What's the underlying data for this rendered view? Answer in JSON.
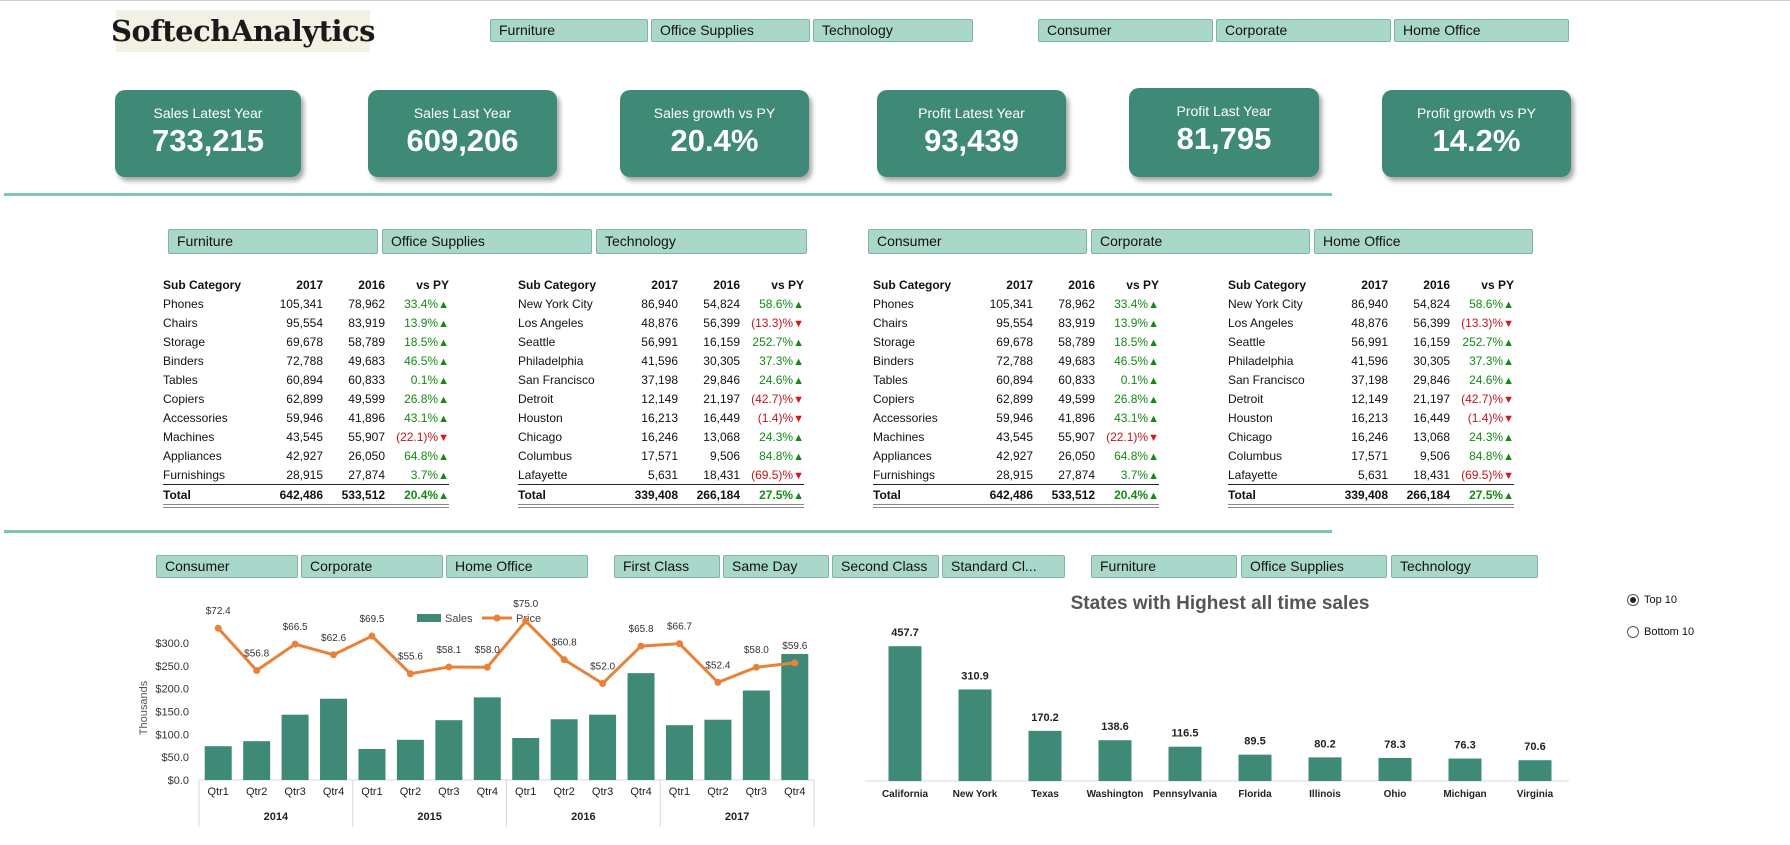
{
  "logo_text": "SoftechAnalytics",
  "top_slicers": {
    "category": [
      "Furniture",
      "Office Supplies",
      "Technology"
    ],
    "segment": [
      "Consumer",
      "Corporate",
      "Home Office"
    ]
  },
  "kpis": [
    {
      "title": "Sales Latest Year",
      "value": "733,215"
    },
    {
      "title": "Sales Last Year",
      "value": "609,206"
    },
    {
      "title": "Sales growth vs PY",
      "value": "20.4%"
    },
    {
      "title": "Profit Latest Year",
      "value": "93,439"
    },
    {
      "title": "Profit Last Year",
      "value": "81,795"
    },
    {
      "title": "Profit growth vs PY",
      "value": "14.2%"
    }
  ],
  "mid_slicers": {
    "category": [
      "Furniture",
      "Office Supplies",
      "Technology"
    ],
    "segment": [
      "Consumer",
      "Corporate",
      "Home Office"
    ]
  },
  "tables": [
    {
      "headers": [
        "Sub Category",
        "2017",
        "2016",
        "vs PY"
      ],
      "rows": [
        [
          "Phones",
          "105,341",
          "78,962",
          "33.4%",
          "up"
        ],
        [
          "Chairs",
          "95,554",
          "83,919",
          "13.9%",
          "up"
        ],
        [
          "Storage",
          "69,678",
          "58,789",
          "18.5%",
          "up"
        ],
        [
          "Binders",
          "72,788",
          "49,683",
          "46.5%",
          "up"
        ],
        [
          "Tables",
          "60,894",
          "60,833",
          "0.1%",
          "up"
        ],
        [
          "Copiers",
          "62,899",
          "49,599",
          "26.8%",
          "up"
        ],
        [
          "Accessories",
          "59,946",
          "41,896",
          "43.1%",
          "up"
        ],
        [
          "Machines",
          "43,545",
          "55,907",
          "(22.1)%",
          "down"
        ],
        [
          "Appliances",
          "42,927",
          "26,050",
          "64.8%",
          "up"
        ],
        [
          "Furnishings",
          "28,915",
          "27,874",
          "3.7%",
          "up"
        ]
      ],
      "total": [
        "Total",
        "642,486",
        "533,512",
        "20.4%",
        "up"
      ]
    },
    {
      "headers": [
        "Sub Category",
        "2017",
        "2016",
        "vs PY"
      ],
      "rows": [
        [
          "New York City",
          "86,940",
          "54,824",
          "58.6%",
          "up"
        ],
        [
          "Los Angeles",
          "48,876",
          "56,399",
          "(13.3)%",
          "down"
        ],
        [
          "Seattle",
          "56,991",
          "16,159",
          "252.7%",
          "up"
        ],
        [
          "Philadelphia",
          "41,596",
          "30,305",
          "37.3%",
          "up"
        ],
        [
          "San Francisco",
          "37,198",
          "29,846",
          "24.6%",
          "up"
        ],
        [
          "Detroit",
          "12,149",
          "21,197",
          "(42.7)%",
          "down"
        ],
        [
          "Houston",
          "16,213",
          "16,449",
          "(1.4)%",
          "down"
        ],
        [
          "Chicago",
          "16,246",
          "13,068",
          "24.3%",
          "up"
        ],
        [
          "Columbus",
          "17,571",
          "9,506",
          "84.8%",
          "up"
        ],
        [
          "Lafayette",
          "5,631",
          "18,431",
          "(69.5)%",
          "down"
        ]
      ],
      "total": [
        "Total",
        "339,408",
        "266,184",
        "27.5%",
        "up"
      ]
    },
    {
      "headers": [
        "Sub Category",
        "2017",
        "2016",
        "vs PY"
      ],
      "rows": [
        [
          "Phones",
          "105,341",
          "78,962",
          "33.4%",
          "up"
        ],
        [
          "Chairs",
          "95,554",
          "83,919",
          "13.9%",
          "up"
        ],
        [
          "Storage",
          "69,678",
          "58,789",
          "18.5%",
          "up"
        ],
        [
          "Binders",
          "72,788",
          "49,683",
          "46.5%",
          "up"
        ],
        [
          "Tables",
          "60,894",
          "60,833",
          "0.1%",
          "up"
        ],
        [
          "Copiers",
          "62,899",
          "49,599",
          "26.8%",
          "up"
        ],
        [
          "Accessories",
          "59,946",
          "41,896",
          "43.1%",
          "up"
        ],
        [
          "Machines",
          "43,545",
          "55,907",
          "(22.1)%",
          "down"
        ],
        [
          "Appliances",
          "42,927",
          "26,050",
          "64.8%",
          "up"
        ],
        [
          "Furnishings",
          "28,915",
          "27,874",
          "3.7%",
          "up"
        ]
      ],
      "total": [
        "Total",
        "642,486",
        "533,512",
        "20.4%",
        "up"
      ]
    },
    {
      "headers": [
        "Sub Category",
        "2017",
        "2016",
        "vs PY"
      ],
      "rows": [
        [
          "New York City",
          "86,940",
          "54,824",
          "58.6%",
          "up"
        ],
        [
          "Los Angeles",
          "48,876",
          "56,399",
          "(13.3)%",
          "down"
        ],
        [
          "Seattle",
          "56,991",
          "16,159",
          "252.7%",
          "up"
        ],
        [
          "Philadelphia",
          "41,596",
          "30,305",
          "37.3%",
          "up"
        ],
        [
          "San Francisco",
          "37,198",
          "29,846",
          "24.6%",
          "up"
        ],
        [
          "Detroit",
          "12,149",
          "21,197",
          "(42.7)%",
          "down"
        ],
        [
          "Houston",
          "16,213",
          "16,449",
          "(1.4)%",
          "down"
        ],
        [
          "Chicago",
          "16,246",
          "13,068",
          "24.3%",
          "up"
        ],
        [
          "Columbus",
          "17,571",
          "9,506",
          "84.8%",
          "up"
        ],
        [
          "Lafayette",
          "5,631",
          "18,431",
          "(69.5)%",
          "down"
        ]
      ],
      "total": [
        "Total",
        "339,408",
        "266,184",
        "27.5%",
        "up"
      ]
    }
  ],
  "bottom_slicers": {
    "segment": [
      "Consumer",
      "Corporate",
      "Home Office"
    ],
    "ship_mode": [
      "First Class",
      "Same Day",
      "Second Class",
      "Standard Cl..."
    ],
    "category": [
      "Furniture",
      "Office Supplies",
      "Technology"
    ]
  },
  "radio": {
    "options": [
      "Top 10",
      "Bottom 10"
    ],
    "selected": "Top 10"
  },
  "colors": {
    "accent": "#3f8a76",
    "slicer": "#a9d8cb",
    "line": "#e8823a",
    "divider": "#7cc7b3",
    "positive": "#138a13",
    "negative": "#c0151b"
  },
  "chart_data": [
    {
      "type": "bar",
      "title": "",
      "legend": {
        "position": "top",
        "entries": [
          "Sales",
          "Price"
        ]
      },
      "ylabel": "Thousands",
      "ylim": [
        0,
        300
      ],
      "ytick_labels": [
        "$0.0",
        "$50.0",
        "$100.0",
        "$150.0",
        "$200.0",
        "$250.0",
        "$300.0"
      ],
      "years": [
        "2014",
        "2015",
        "2016",
        "2017"
      ],
      "categories": [
        "Qtr1",
        "Qtr2",
        "Qtr3",
        "Qtr4",
        "Qtr1",
        "Qtr2",
        "Qtr3",
        "Qtr4",
        "Qtr1",
        "Qtr2",
        "Qtr3",
        "Qtr4",
        "Qtr1",
        "Qtr2",
        "Qtr3",
        "Qtr4"
      ],
      "series": [
        {
          "name": "Sales",
          "type": "bar",
          "values": [
            74,
            85,
            143,
            178,
            68,
            88,
            131,
            181,
            92,
            133,
            143,
            234,
            120,
            132,
            196,
            276
          ]
        },
        {
          "name": "Price",
          "type": "line",
          "values": [
            72.4,
            56.8,
            66.5,
            62.6,
            69.5,
            55.6,
            58.1,
            58.0,
            75.0,
            60.8,
            52.0,
            65.8,
            66.7,
            52.4,
            58.0,
            59.6
          ],
          "labels": [
            "$72.4",
            "$56.8",
            "$66.5",
            "$62.6",
            "$69.5",
            "$55.6",
            "$58.1",
            "$58.0",
            "$75.0",
            "$60.8",
            "$52.0",
            "$65.8",
            "$66.7",
            "$52.4",
            "$58.0",
            "$59.6"
          ]
        }
      ]
    },
    {
      "type": "bar",
      "title": "States with Highest all time sales",
      "categories": [
        "California",
        "New York",
        "Texas",
        "Washington",
        "Pennsylvania",
        "Florida",
        "Illinois",
        "Ohio",
        "Michigan",
        "Virginia"
      ],
      "values": [
        457.7,
        310.9,
        170.2,
        138.6,
        116.5,
        89.5,
        80.2,
        78.3,
        76.3,
        70.6
      ],
      "labels": [
        "457.7",
        "310.9",
        "170.2",
        "138.6",
        "116.5",
        "89.5",
        "80.2",
        "78.3",
        "76.3",
        "70.6"
      ]
    }
  ]
}
